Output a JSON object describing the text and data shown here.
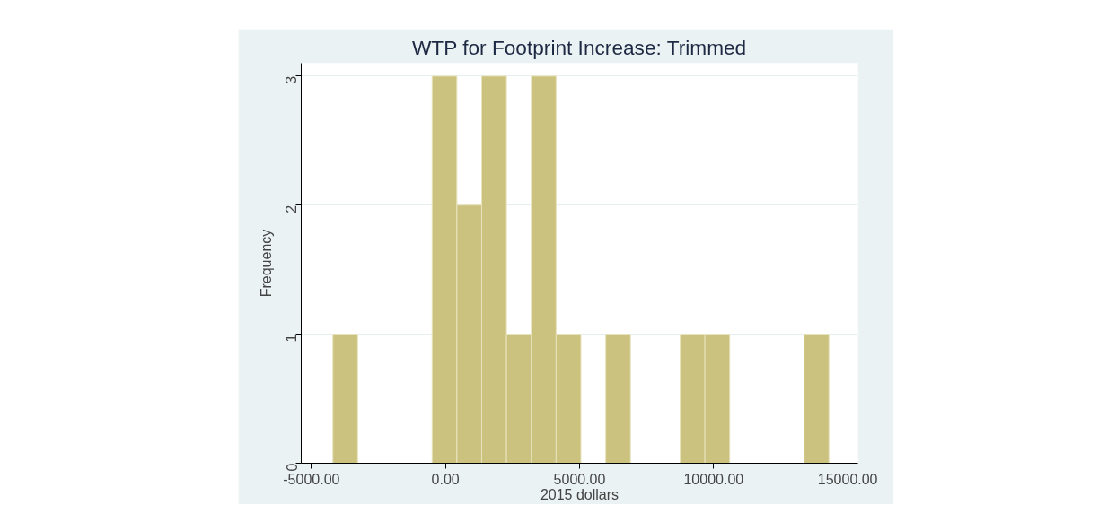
{
  "chart_data": {
    "type": "histogram",
    "title": "WTP for Footprint Increase: Trimmed",
    "xlabel": "2015 dollars",
    "ylabel": "Frequency",
    "bins": [
      -4200,
      -3275,
      -2350,
      -1425,
      -500,
      425,
      1350,
      2275,
      3200,
      4125,
      5050,
      5975,
      6900,
      7825,
      8750,
      9675,
      10600,
      11525,
      12450,
      13375,
      14300
    ],
    "values": [
      1,
      0,
      0,
      0,
      3,
      2,
      3,
      1,
      3,
      1,
      0,
      1,
      0,
      0,
      1,
      1,
      0,
      0,
      0,
      1
    ],
    "color": "#cbc27f",
    "xlim": [
      -5380,
      15380
    ],
    "ylim": [
      0,
      3.1
    ],
    "xticks": [
      {
        "value": -5000,
        "label": "-5000.00"
      },
      {
        "value": 0,
        "label": "0.00"
      },
      {
        "value": 5000,
        "label": "5000.00"
      },
      {
        "value": 10000,
        "label": "10000.00"
      },
      {
        "value": 15000,
        "label": "15000.00"
      }
    ],
    "yticks": [
      0,
      1,
      2,
      3
    ],
    "grid": "y"
  }
}
